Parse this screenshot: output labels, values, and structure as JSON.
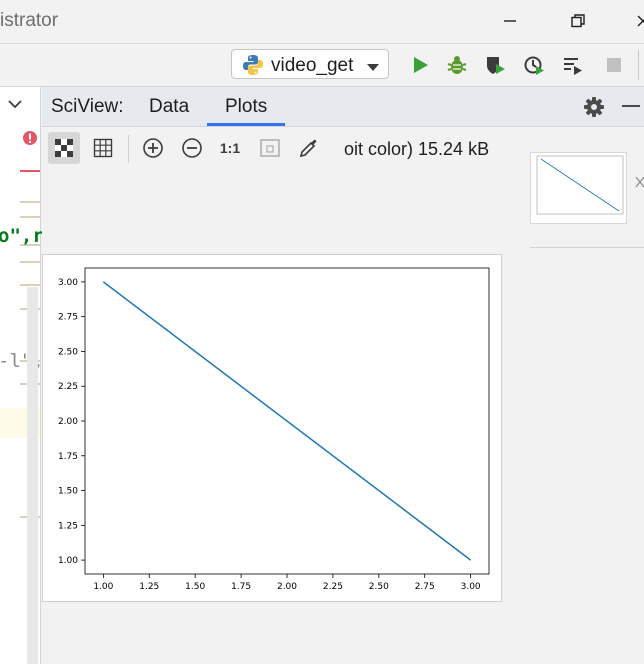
{
  "window": {
    "title_fragment": "istrator",
    "controls": [
      "minimize-icon",
      "restore-icon",
      "close-icon"
    ]
  },
  "toolbar": {
    "run_config": "video_get",
    "icons": [
      "python-icon",
      "dropdown-arrow-icon",
      "run-icon",
      "debug-icon",
      "coverage-icon",
      "profile-icon",
      "run-list-icon",
      "stop-icon"
    ],
    "colors": {
      "run": "#3aa13a",
      "debug": "#5a9a2c",
      "stop": "#c0c0c0"
    }
  },
  "editor": {
    "snippets": {
      "string_fragment": "o\",r",
      "comment_fragment": "-l\","
    },
    "error_icon": "error-circle-icon",
    "colors": {
      "string": "#067d17",
      "error": "#e55765"
    }
  },
  "sciview": {
    "title": "SciView:",
    "tabs": [
      {
        "label": "Data",
        "active": false
      },
      {
        "label": "Plots",
        "active": true
      }
    ],
    "header_icons": [
      "gear-icon",
      "minimize-panel-icon"
    ],
    "plot_toolbar": {
      "buttons": [
        "checker-background-icon",
        "grid-icon",
        "zoom-in-icon",
        "zoom-out-icon",
        "actual-size-icon",
        "fit-icon",
        "color-picker-icon"
      ],
      "actual_size_label": "1:1",
      "image_info": "oit color) 15.24 kB"
    },
    "thumbnail_close_icon": "close-icon",
    "accent": "#3574f0"
  },
  "chart_data": {
    "type": "line",
    "title": "",
    "xlabel": "",
    "ylabel": "",
    "x": [
      1.0,
      3.0
    ],
    "series": [
      {
        "values": [
          3.0,
          1.0
        ],
        "color": "#1f77b4"
      }
    ],
    "xlim": [
      0.9,
      3.1
    ],
    "ylim": [
      0.9,
      3.1
    ],
    "xticks": [
      "1.00",
      "1.25",
      "1.50",
      "1.75",
      "2.00",
      "2.25",
      "2.50",
      "2.75",
      "3.00"
    ],
    "yticks": [
      "1.00",
      "1.25",
      "1.50",
      "1.75",
      "2.00",
      "2.25",
      "2.50",
      "2.75",
      "3.00"
    ],
    "grid": false
  }
}
